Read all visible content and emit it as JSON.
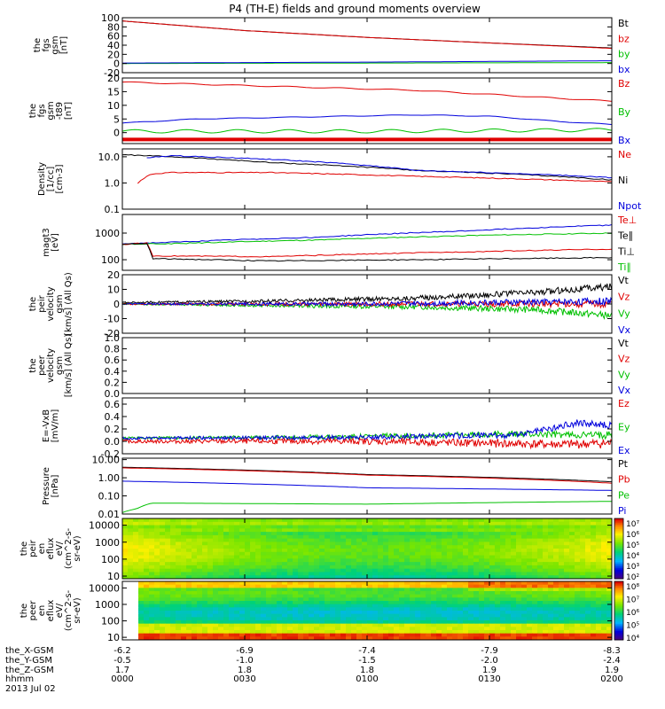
{
  "title": "P4 (TH-E) fields and ground moments overview",
  "colors": {
    "black": "#000000",
    "red": "#e00000",
    "green": "#00c000",
    "blue": "#0000dd"
  },
  "chart_data": [
    {
      "type": "line",
      "id": "fgs_gsm",
      "ylabel": [
        "the",
        "fgs",
        "gsm",
        "[nT]"
      ],
      "yticks": [
        "100",
        "80",
        "60",
        "40",
        "20",
        "0",
        "-20"
      ],
      "ylim": [
        -20,
        100
      ],
      "legend": [
        "Bt",
        "bz",
        "by",
        "bx"
      ],
      "legend_colors": [
        "black",
        "red",
        "green",
        "blue"
      ],
      "series": [
        {
          "color": "black",
          "x": [
            0,
            0.25,
            0.5,
            0.75,
            1.0
          ],
          "values": [
            93,
            72,
            57,
            45,
            34
          ]
        },
        {
          "color": "red",
          "x": [
            0,
            0.25,
            0.5,
            0.75,
            1.0
          ],
          "values": [
            93,
            72,
            57,
            45,
            33
          ]
        },
        {
          "color": "green",
          "x": [
            0,
            0.5,
            1.0
          ],
          "values": [
            0,
            1,
            2
          ]
        },
        {
          "color": "blue",
          "x": [
            0,
            0.5,
            1.0
          ],
          "values": [
            1,
            3,
            6
          ]
        }
      ]
    },
    {
      "type": "line",
      "id": "fgs_gsm_t89",
      "ylabel": [
        "the",
        "fgs",
        "gsm",
        "-t89",
        "[nT]"
      ],
      "yticks": [
        "20",
        "15",
        "10",
        "5",
        "0"
      ],
      "ylim": [
        -4,
        20
      ],
      "legend": [
        "Bz",
        "By",
        "Bx"
      ],
      "legend_colors": [
        "red",
        "green",
        "blue"
      ],
      "series": [
        {
          "color": "red",
          "x": [
            0,
            0.2,
            0.4,
            0.6,
            0.8,
            1.0
          ],
          "values": [
            18.5,
            17.5,
            16.5,
            15.5,
            13.5,
            11.5
          ]
        },
        {
          "color": "green",
          "x": [
            0,
            0.5,
            1.0
          ],
          "values": [
            0.5,
            0.5,
            1.0
          ]
        },
        {
          "color": "blue",
          "x": [
            0,
            0.15,
            0.3,
            0.45,
            0.6,
            0.75,
            0.9,
            1.0
          ],
          "values": [
            3.5,
            5,
            5.5,
            6,
            6.5,
            6,
            4,
            3
          ]
        },
        {
          "color": "red",
          "x": [
            0,
            1.0
          ],
          "values": [
            -2.5,
            -2.5
          ]
        }
      ]
    },
    {
      "type": "line",
      "id": "density",
      "yscale": "log",
      "ylabel": [
        "Density",
        "[1/cc]",
        "[cm-3]"
      ],
      "yticks": [
        "10.0",
        "1.0",
        "0.1"
      ],
      "ylim": [
        0.1,
        20
      ],
      "legend": [
        "Ne",
        "Ni",
        "Npot"
      ],
      "legend_colors": [
        "red",
        "black",
        "blue"
      ],
      "series": [
        {
          "color": "black",
          "x": [
            0,
            0.3,
            0.6,
            1.0
          ],
          "values": [
            12,
            6,
            3,
            1.3
          ]
        },
        {
          "color": "red",
          "x": [
            0.03,
            0.05,
            0.06,
            0.1,
            0.3,
            0.6,
            1.0
          ],
          "values": [
            0.9,
            1.8,
            2.2,
            2.5,
            2.5,
            1.8,
            1.1
          ]
        },
        {
          "color": "blue",
          "x": [
            0.05,
            0.1,
            0.3,
            0.6,
            1.0
          ],
          "values": [
            9,
            11,
            8,
            3,
            1.6
          ]
        }
      ]
    },
    {
      "type": "line",
      "id": "temperature",
      "yscale": "log",
      "ylabel": [
        "magt3",
        "[eV]"
      ],
      "yticks": [
        "1000",
        "100"
      ],
      "ylim": [
        40,
        5000
      ],
      "legend": [
        "Te⊥",
        "Te∥",
        "Ti⊥",
        "Ti∥"
      ],
      "legend_colors": [
        "red",
        "black",
        "black",
        "green"
      ],
      "series": [
        {
          "color": "blue",
          "x": [
            0,
            0.1,
            0.4,
            0.7,
            1.0
          ],
          "values": [
            400,
            450,
            700,
            1200,
            2000
          ]
        },
        {
          "color": "green",
          "x": [
            0,
            0.1,
            0.4,
            0.7,
            1.0
          ],
          "values": [
            380,
            400,
            550,
            800,
            1000
          ]
        },
        {
          "color": "red",
          "x": [
            0,
            0.05,
            0.06,
            0.3,
            0.6,
            1.0
          ],
          "values": [
            380,
            420,
            140,
            130,
            180,
            250
          ]
        },
        {
          "color": "black",
          "x": [
            0,
            0.05,
            0.06,
            0.3,
            0.6,
            1.0
          ],
          "values": [
            380,
            400,
            110,
            90,
            100,
            120
          ]
        }
      ]
    },
    {
      "type": "line",
      "id": "peir_velocity",
      "ylabel": [
        "the",
        "peir",
        "velocity",
        "gsm",
        "[km/s] (All Qs)"
      ],
      "yticks": [
        "20",
        "10",
        "0",
        "-10",
        "-20"
      ],
      "ylim": [
        -20,
        20
      ],
      "legend": [
        "Vt",
        "Vz",
        "Vy",
        "Vx"
      ],
      "legend_colors": [
        "black",
        "red",
        "green",
        "blue"
      ],
      "series": [
        {
          "color": "black",
          "x": [
            0,
            0.3,
            0.6,
            0.85,
            1.0
          ],
          "values": [
            1,
            2,
            4,
            8,
            12
          ]
        },
        {
          "color": "green",
          "x": [
            0,
            0.3,
            0.6,
            0.85,
            1.0
          ],
          "values": [
            0,
            -1,
            -2,
            -4,
            -8
          ]
        },
        {
          "color": "red",
          "x": [
            0,
            0.5,
            1.0
          ],
          "values": [
            0,
            0,
            0
          ]
        },
        {
          "color": "blue",
          "x": [
            0,
            0.5,
            1.0
          ],
          "values": [
            0,
            0,
            2
          ]
        }
      ]
    },
    {
      "type": "line",
      "id": "peer_velocity",
      "ylabel": [
        "the",
        "peer",
        "velocity",
        "gsm",
        "[km/s] (All Qs)"
      ],
      "yticks": [
        "1.0",
        "0.8",
        "0.6",
        "0.4",
        "0.2",
        "0.0"
      ],
      "ylim": [
        0,
        1
      ],
      "legend": [
        "Vt",
        "Vz",
        "Vy",
        "Vx"
      ],
      "legend_colors": [
        "black",
        "red",
        "green",
        "blue"
      ],
      "series": []
    },
    {
      "type": "line",
      "id": "efield",
      "ylabel": [
        "E=-VxB",
        "[mV/m]"
      ],
      "yticks": [
        "0.6",
        "0.4",
        "0.2",
        "0.0",
        "-0.2"
      ],
      "ylim": [
        -0.2,
        0.7
      ],
      "legend": [
        "Ez",
        "Ey",
        "Ex"
      ],
      "legend_colors": [
        "red",
        "green",
        "blue"
      ],
      "series": [
        {
          "color": "green",
          "x": [
            0,
            0.4,
            0.8,
            1.0
          ],
          "values": [
            0.05,
            0.07,
            0.12,
            0.1
          ]
        },
        {
          "color": "blue",
          "x": [
            0,
            0.4,
            0.8,
            0.93,
            1.0
          ],
          "values": [
            0.05,
            0.06,
            0.1,
            0.3,
            0.25
          ]
        },
        {
          "color": "red",
          "x": [
            0,
            0.5,
            0.9,
            1.0
          ],
          "values": [
            0.0,
            0.0,
            -0.05,
            -0.03
          ]
        }
      ]
    },
    {
      "type": "line",
      "id": "pressure",
      "yscale": "log",
      "ylabel": [
        "Pressure",
        "[nPa]"
      ],
      "yticks": [
        "10.00",
        "1.00",
        "0.10",
        "0.01"
      ],
      "ylim": [
        0.01,
        12
      ],
      "legend": [
        "Pt",
        "Pb",
        "Pe",
        "Pi"
      ],
      "legend_colors": [
        "black",
        "red",
        "green",
        "blue"
      ],
      "series": [
        {
          "color": "black",
          "x": [
            0,
            0.5,
            1.0
          ],
          "values": [
            3.8,
            1.5,
            0.6
          ]
        },
        {
          "color": "red",
          "x": [
            0,
            0.5,
            1.0
          ],
          "values": [
            3.5,
            1.4,
            0.5
          ]
        },
        {
          "color": "blue",
          "x": [
            0,
            0.5,
            1.0
          ],
          "values": [
            0.65,
            0.28,
            0.2
          ]
        },
        {
          "color": "green",
          "x": [
            0,
            0.03,
            0.06,
            0.5,
            1.0
          ],
          "values": [
            0.012,
            0.02,
            0.04,
            0.035,
            0.05
          ]
        }
      ]
    },
    {
      "type": "heatmap",
      "id": "peir_en_eflux",
      "yscale": "log",
      "ylabel": [
        "the",
        "peir",
        "en",
        "eflux",
        "eV/",
        "(cm^2-s-",
        "sr-eV)"
      ],
      "yticks": [
        "10000",
        "1000",
        "100",
        "10"
      ],
      "ylim": [
        7,
        25000
      ],
      "colorbar": {
        "ticks": [
          "10⁷",
          "10⁶",
          "10⁵",
          "10⁴",
          "10³",
          "10²"
        ]
      }
    },
    {
      "type": "heatmap",
      "id": "peer_en_eflux",
      "yscale": "log",
      "ylabel": [
        "the",
        "peer",
        "en",
        "eflux",
        "eV/",
        "(cm^2-s-",
        "sr-eV)"
      ],
      "yticks": [
        "10000",
        "1000",
        "100",
        "10"
      ],
      "ylim": [
        7,
        25000
      ],
      "colorbar": {
        "ticks": [
          "10⁸",
          "10⁷",
          "10⁶",
          "10⁵",
          "10⁴"
        ]
      }
    }
  ],
  "x_axis": {
    "labels": [
      "the_X-GSM",
      "the_Y-GSM",
      "the_Z-GSM",
      "hhmm",
      "2013 Jul 02"
    ],
    "columns": [
      [
        "-6.2",
        "-0.5",
        "1.7",
        "0000"
      ],
      [
        "-6.9",
        "-1.0",
        "1.8",
        "0030"
      ],
      [
        "-7.4",
        "-1.5",
        "1.8",
        "0100"
      ],
      [
        "-7.9",
        "-2.0",
        "1.9",
        "0130"
      ],
      [
        "-8.3",
        "-2.4",
        "1.9",
        "0200"
      ]
    ]
  }
}
